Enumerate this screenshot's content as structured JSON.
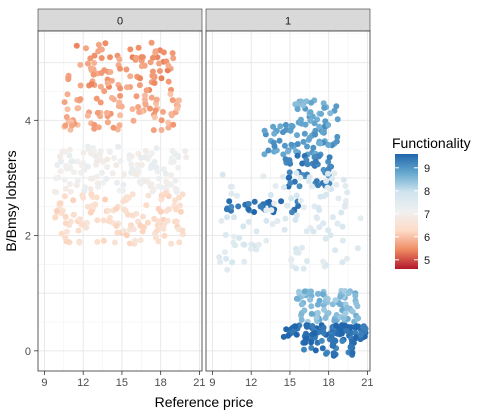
{
  "chart_data": {
    "type": "scatter",
    "xlabel": "Reference price",
    "ylabel": "B/Bmsy lobsters",
    "xticks": [
      9,
      12,
      15,
      18,
      21
    ],
    "yticks": [
      0,
      2,
      4
    ],
    "xlim": [
      8.5,
      21.2
    ],
    "ylim": [
      -0.35,
      5.55
    ],
    "grid": true,
    "facet_labels": [
      "0",
      "1"
    ],
    "legend": {
      "title": "Functionality",
      "position": "right",
      "ticks": [
        9,
        8,
        7,
        6,
        5
      ],
      "range": [
        4.6,
        9.6
      ],
      "colors": [
        "#b2182b",
        "#ef8a62",
        "#fddbc7",
        "#f0f0f0",
        "#d1e5f0",
        "#67a9cf",
        "#2166ac"
      ]
    },
    "clusters": [
      {
        "panel": 0,
        "x": [
          10.8,
          19.0
        ],
        "y": [
          4.5,
          5.35
        ],
        "n": 90,
        "func": 5.6
      },
      {
        "panel": 0,
        "x": [
          10.5,
          19.5
        ],
        "y": [
          3.82,
          4.48
        ],
        "n": 80,
        "func": 5.8
      },
      {
        "panel": 0,
        "x": [
          9.8,
          20.0
        ],
        "y": [
          2.75,
          3.55
        ],
        "n": 130,
        "func": 7.1
      },
      {
        "panel": 0,
        "x": [
          9.8,
          20.0
        ],
        "y": [
          1.85,
          2.75
        ],
        "n": 130,
        "func": 6.4
      },
      {
        "panel": 1,
        "x": [
          15.2,
          18.7
        ],
        "y": [
          3.95,
          4.35
        ],
        "n": 30,
        "func": 8.7
      },
      {
        "panel": 1,
        "x": [
          13.0,
          18.7
        ],
        "y": [
          3.4,
          3.95
        ],
        "n": 70,
        "func": 8.9
      },
      {
        "panel": 1,
        "x": [
          14.5,
          18.2
        ],
        "y": [
          2.85,
          3.4
        ],
        "n": 45,
        "func": 9.3
      },
      {
        "panel": 1,
        "x": [
          10.0,
          16.0
        ],
        "y": [
          2.4,
          2.6
        ],
        "n": 30,
        "func": 9.4
      },
      {
        "panel": 1,
        "x": [
          9.5,
          20.5
        ],
        "y": [
          1.4,
          3.1
        ],
        "n": 110,
        "func": 7.6
      },
      {
        "panel": 1,
        "x": [
          15.5,
          20.3
        ],
        "y": [
          0.5,
          1.05
        ],
        "n": 90,
        "func": 8.5
      },
      {
        "panel": 1,
        "x": [
          14.5,
          21.0
        ],
        "y": [
          0.18,
          0.45
        ],
        "n": 100,
        "func": 9.5
      },
      {
        "panel": 1,
        "x": [
          15.5,
          20.0
        ],
        "y": [
          -0.1,
          0.18
        ],
        "n": 30,
        "func": 9.4
      }
    ]
  }
}
